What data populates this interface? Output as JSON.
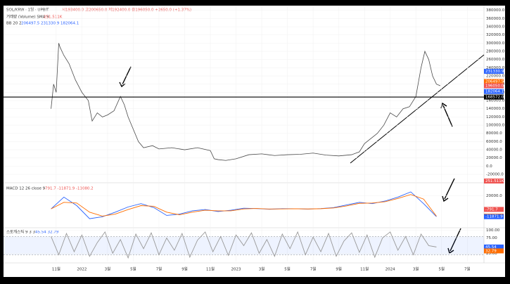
{
  "chart_data": [
    {
      "type": "line",
      "title": "SOL/KRW · 1일 · UPBIT",
      "ohlc": "시193400.0 고200650.0 저192400.0 종196050.0 +2650.0 (+1.37%)",
      "volume_legend": "거래량 (Volume) SMA 9",
      "volume_value": "251.511K",
      "bb_legend": "BB 20 2",
      "bb_values": "206497.5 231330.9 182064.1",
      "x": [
        -0.4,
        -0.2,
        0,
        0.2,
        0.3,
        0.6,
        1.0,
        1.5,
        2.0,
        2.5,
        2.8,
        3.2,
        3.6,
        4.0,
        4.5,
        5.0,
        5.3,
        5.6,
        6.0,
        6.4,
        6.8,
        7.5,
        8,
        9,
        10,
        11,
        12,
        12.3,
        12.6,
        13.2,
        14,
        15,
        16,
        17,
        18,
        19,
        20,
        21,
        22,
        23,
        23.6,
        24,
        25,
        25.5,
        26,
        26.5,
        27,
        27.5,
        28,
        28.4,
        28.7,
        29,
        29.3,
        29.6,
        29.9
      ],
      "series": [
        {
          "name": "SOL/KRW",
          "color": "#4a4a4a",
          "values": [
            140000,
            200000,
            180000,
            300000,
            290000,
            270000,
            250000,
            210000,
            180000,
            160000,
            110000,
            130000,
            120000,
            125000,
            135000,
            170000,
            150000,
            120000,
            90000,
            60000,
            45000,
            50000,
            42000,
            45000,
            40000,
            45000,
            38000,
            18000,
            16000,
            14000,
            18000,
            28000,
            30000,
            26000,
            28000,
            29000,
            32000,
            27000,
            25000,
            28000,
            35000,
            55000,
            80000,
            100000,
            130000,
            120000,
            140000,
            145000,
            170000,
            240000,
            280000,
            260000,
            220000,
            200000,
            196050
          ]
        }
      ],
      "xlim": [
        -4.1,
        33.3
      ],
      "ylim": [
        -37000,
        388000
      ],
      "xticks": [
        {
          "value": 0,
          "label": "11월"
        },
        {
          "value": 2,
          "label": "2022"
        },
        {
          "value": 4,
          "label": "3월"
        },
        {
          "value": 6,
          "label": "5월"
        },
        {
          "value": 8,
          "label": "7월"
        },
        {
          "value": 10,
          "label": "9월"
        },
        {
          "value": 12,
          "label": "11월"
        },
        {
          "value": 14,
          "label": "2023"
        },
        {
          "value": 16,
          "label": "3월"
        },
        {
          "value": 18,
          "label": "5월"
        },
        {
          "value": 20,
          "label": "7월"
        },
        {
          "value": 22,
          "label": "9월"
        },
        {
          "value": 24,
          "label": "11월"
        },
        {
          "value": 26,
          "label": "2024"
        },
        {
          "value": 28,
          "label": "3월"
        },
        {
          "value": 30,
          "label": "5월"
        },
        {
          "value": 32,
          "label": "7월"
        }
      ],
      "yticks": [
        {
          "value": 380000,
          "label": "380000.0"
        },
        {
          "value": 360000,
          "label": "360000.0"
        },
        {
          "value": 340000,
          "label": "340000.0"
        },
        {
          "value": 320000,
          "label": "320000.0"
        },
        {
          "value": 300000,
          "label": "300000.0"
        },
        {
          "value": 280000,
          "label": "280000.0"
        },
        {
          "value": 260000,
          "label": "260000.0"
        },
        {
          "value": 240000,
          "label": "240000.0"
        },
        {
          "value": 220000,
          "label": "220000.0"
        },
        {
          "value": 200000,
          "label": "200000.0"
        },
        {
          "value": 180000,
          "label": "180000.0"
        },
        {
          "value": 160000,
          "label": "160000.0"
        },
        {
          "value": 140000,
          "label": "140000.0"
        },
        {
          "value": 120000,
          "label": "120000.0"
        },
        {
          "value": 100000,
          "label": "100000.0"
        },
        {
          "value": 80000,
          "label": "80000.0"
        },
        {
          "value": 60000,
          "label": "60000.0"
        },
        {
          "value": 40000,
          "label": "40000.0"
        },
        {
          "value": 20000,
          "label": "20000.0"
        },
        {
          "value": 0,
          "label": "0.0"
        },
        {
          "value": -20000,
          "label": "-20000.0"
        }
      ],
      "hline": {
        "value": 168572,
        "label": "168572.0",
        "color": "#000000"
      },
      "price_labels": [
        {
          "value": 231330.9,
          "label": "231330.9",
          "color": "#2962ff"
        },
        {
          "value": 206497.5,
          "label": "206497.5",
          "color": "#ff6d00"
        },
        {
          "value": 196050,
          "label": "196050.0",
          "color": "#ef5350"
        },
        {
          "value": 182064.1,
          "label": "182064.1",
          "color": "#2962ff"
        }
      ]
    },
    {
      "type": "line",
      "title": "MACD 12 26 close 9",
      "legend_values": "-791.7 -11871.9 -11080.2",
      "x": [
        -0.4,
        0.6,
        1.6,
        2.6,
        3.6,
        4.6,
        5.6,
        6.6,
        7.6,
        8.6,
        9.6,
        10.6,
        11.6,
        12.6,
        13.6,
        14.6,
        15.6,
        16.6,
        17.6,
        18.6,
        19.6,
        20.6,
        21.6,
        22.6,
        23.6,
        24.6,
        25.6,
        26.6,
        27.6,
        28.6,
        29.6
      ],
      "series": [
        {
          "name": "MACD",
          "color": "#2962ff",
          "values": [
            0,
            18000,
            5000,
            -15000,
            -12000,
            -5000,
            3000,
            8000,
            2000,
            -10000,
            -8000,
            -3000,
            -1000,
            -4000,
            -2000,
            1000,
            500,
            -500,
            300,
            200,
            -300,
            500,
            2000,
            6000,
            10000,
            8000,
            12000,
            18000,
            26000,
            8000,
            -11871.9
          ]
        },
        {
          "name": "Signal",
          "color": "#ff6d00",
          "values": [
            0,
            10000,
            9000,
            -5000,
            -11000,
            -8000,
            -1000,
            5000,
            4000,
            -5000,
            -9000,
            -5000,
            -2000,
            -3000,
            -3000,
            0,
            600,
            -200,
            0,
            200,
            -100,
            300,
            1500,
            4500,
            8500,
            9000,
            11000,
            16000,
            22000,
            15000,
            -11080.2
          ]
        }
      ],
      "xlim": [
        -4.1,
        33.3
      ],
      "ylim": [
        -26700,
        37800
      ],
      "yticks": [
        {
          "value": 20000,
          "label": "20000.0"
        }
      ],
      "price_labels": [
        {
          "value": -791.7,
          "label": "-791.7",
          "color": "#ef5350"
        },
        {
          "value": -11080.2,
          "label": "-11080.2",
          "color": "#ff6d00"
        },
        {
          "value": -11871.9,
          "label": "-11871.9",
          "color": "#2962ff"
        }
      ]
    },
    {
      "type": "line",
      "title": "스토캐스틱 9 3 3",
      "legend_values": "45.54 32.79",
      "x": [
        -0.4,
        0.2,
        0.8,
        1.4,
        2.0,
        2.6,
        3.2,
        3.8,
        4.4,
        5.0,
        5.6,
        6.2,
        6.8,
        7.4,
        8.0,
        8.6,
        9.2,
        9.8,
        10.4,
        11.0,
        11.6,
        12.2,
        12.8,
        13.4,
        14.0,
        14.6,
        15.2,
        15.8,
        16.4,
        17.0,
        17.6,
        18.2,
        18.8,
        19.4,
        20.0,
        20.6,
        21.2,
        21.8,
        22.4,
        23.0,
        23.6,
        24.2,
        24.8,
        25.4,
        26.0,
        26.6,
        27.2,
        27.8,
        28.4,
        29.0,
        29.6
      ],
      "series": [
        {
          "name": "%K",
          "color": "#999999",
          "values": [
            80,
            20,
            90,
            30,
            85,
            15,
            60,
            95,
            25,
            70,
            10,
            88,
            40,
            92,
            20,
            75,
            35,
            90,
            12,
            68,
            95,
            30,
            80,
            18,
            85,
            50,
            92,
            25,
            70,
            15,
            88,
            40,
            95,
            20,
            78,
            30,
            90,
            15,
            65,
            92,
            28,
            85,
            12,
            75,
            95,
            35,
            80,
            20,
            88,
            50,
            45.54
          ]
        }
      ],
      "xlim": [
        -4.1,
        33.3
      ],
      "ylim": [
        -2,
        104
      ],
      "band": [
        20,
        80
      ],
      "yticks": [
        {
          "value": 100,
          "label": "100.00"
        },
        {
          "value": 75,
          "label": "75.00"
        },
        {
          "value": 25,
          "label": "25.00"
        }
      ],
      "price_labels": [
        {
          "value": 45.54,
          "label": "45.54",
          "color": "#2962ff"
        },
        {
          "value": 32.79,
          "label": "32.79",
          "color": "#ff6d00"
        }
      ]
    }
  ]
}
